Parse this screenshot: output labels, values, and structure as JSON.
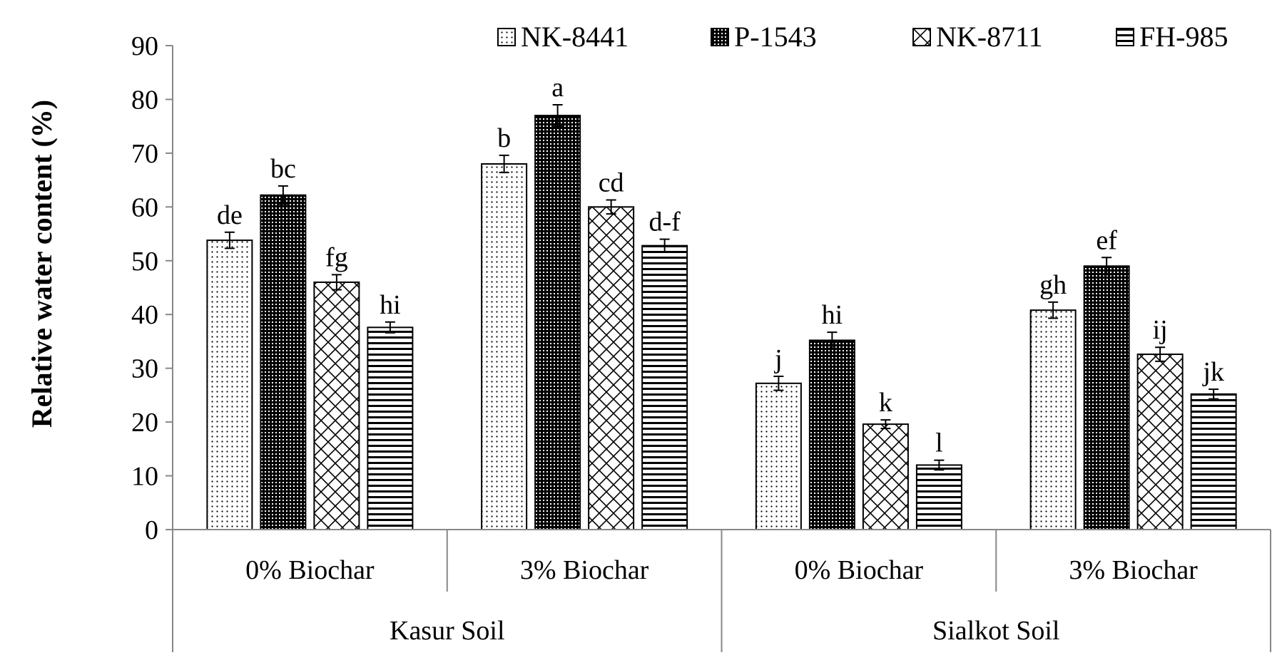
{
  "chart_data": {
    "type": "bar",
    "ylabel": "Relative water content (%)",
    "ylim": [
      0,
      90
    ],
    "yticks": [
      0,
      10,
      20,
      30,
      40,
      50,
      60,
      70,
      80,
      90
    ],
    "grid": false,
    "legend_position": "top-right",
    "groups": [
      {
        "label": "Kasur Soil",
        "categories": [
          "0% Biochar",
          "3% Biochar"
        ]
      },
      {
        "label": "Sialkot Soil",
        "categories": [
          "0% Biochar",
          "3% Biochar"
        ]
      }
    ],
    "categories": [
      "0% Biochar",
      "3% Biochar",
      "0% Biochar",
      "3% Biochar"
    ],
    "series": [
      {
        "name": "NK-8441",
        "pattern": "dots",
        "values": [
          53.8,
          68.0,
          27.2,
          40.8
        ],
        "errors": [
          1.5,
          1.6,
          1.3,
          1.5
        ],
        "letters": [
          "de",
          "b",
          "j",
          "gh"
        ]
      },
      {
        "name": "P-1543",
        "pattern": "dense-dots",
        "values": [
          62.2,
          77.0,
          35.2,
          49.0
        ],
        "errors": [
          1.7,
          2.0,
          1.5,
          1.6
        ],
        "letters": [
          "bc",
          "a",
          "hi",
          "ef"
        ]
      },
      {
        "name": "NK-8711",
        "pattern": "crosshatch",
        "values": [
          46.0,
          60.0,
          19.6,
          32.6
        ],
        "errors": [
          1.4,
          1.3,
          0.8,
          1.3
        ],
        "letters": [
          "fg",
          "cd",
          "k",
          "ij"
        ]
      },
      {
        "name": "FH-985",
        "pattern": "hlines",
        "values": [
          37.6,
          52.8,
          12.0,
          25.2
        ],
        "errors": [
          1.0,
          1.2,
          0.9,
          0.9
        ],
        "letters": [
          "hi",
          "d-f",
          "l",
          "jk"
        ]
      }
    ]
  }
}
